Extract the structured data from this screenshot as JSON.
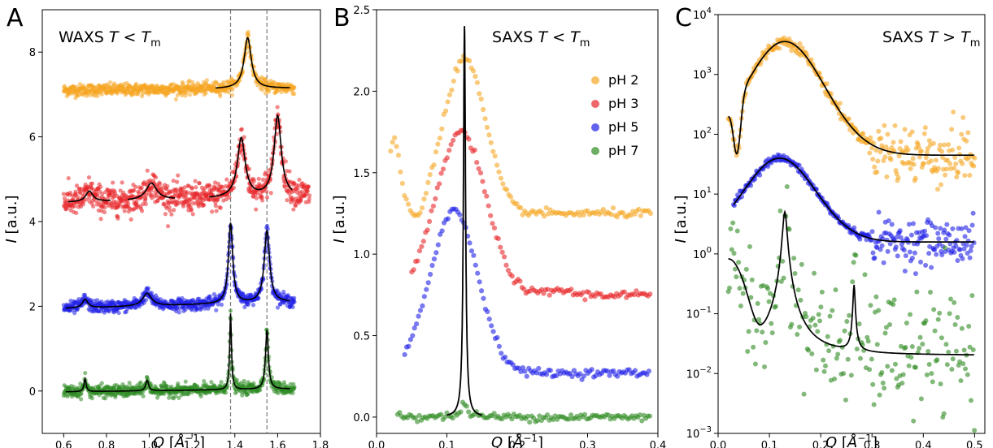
{
  "chart_data": [
    {
      "type": "scatter",
      "panel": "A",
      "title": "WAXS T < Tm",
      "xlabel": "Q [Å⁻¹]",
      "ylabel": "I [a.u.]",
      "xlim": [
        0.5,
        1.8
      ],
      "ylim": [
        -1,
        9
      ],
      "xticks": [
        "0.6",
        "0.8",
        "1.0",
        "1.2",
        "1.4",
        "1.6",
        "1.8"
      ],
      "yticks": [
        "0",
        "2",
        "4",
        "6",
        "8"
      ],
      "vlines": [
        1.38,
        1.55
      ],
      "series": [
        {
          "name": "pH 2",
          "color": "#f5a623",
          "offset": 7.0,
          "x_range": [
            0.6,
            1.68
          ],
          "baseline": [
            7.1,
            7.15
          ],
          "peaks": [
            {
              "x": 1.46,
              "height": 1.2,
              "width": 0.02
            }
          ]
        },
        {
          "name": "pH 3",
          "color": "#e8262a",
          "offset": 4.5,
          "x_range": [
            0.6,
            1.75
          ],
          "baseline": [
            4.45,
            4.6
          ],
          "peaks": [
            {
              "x": 0.72,
              "height": 0.25,
              "width": 0.02
            },
            {
              "x": 1.01,
              "height": 0.4,
              "width": 0.03
            },
            {
              "x": 1.43,
              "height": 1.4,
              "width": 0.022
            },
            {
              "x": 1.6,
              "height": 1.9,
              "width": 0.02
            }
          ]
        },
        {
          "name": "pH 5",
          "color": "#1f1fe8",
          "offset": 2.0,
          "x_range": [
            0.6,
            1.68
          ],
          "baseline": [
            1.95,
            2.1
          ],
          "peaks": [
            {
              "x": 0.7,
              "height": 0.2,
              "width": 0.015
            },
            {
              "x": 0.99,
              "height": 0.3,
              "width": 0.025
            },
            {
              "x": 1.38,
              "height": 1.9,
              "width": 0.012
            },
            {
              "x": 1.55,
              "height": 1.7,
              "width": 0.015
            }
          ]
        },
        {
          "name": "pH 7",
          "color": "#2e8b22",
          "offset": 0.0,
          "x_range": [
            0.6,
            1.68
          ],
          "baseline": [
            -0.02,
            0.05
          ],
          "peaks": [
            {
              "x": 0.7,
              "height": 0.3,
              "width": 0.006
            },
            {
              "x": 0.99,
              "height": 0.25,
              "width": 0.008
            },
            {
              "x": 1.38,
              "height": 1.8,
              "width": 0.005
            },
            {
              "x": 1.55,
              "height": 1.4,
              "width": 0.008
            }
          ]
        }
      ]
    },
    {
      "type": "scatter",
      "panel": "B",
      "title": "SAXS T < Tm",
      "xlabel": "Q [Å⁻¹]",
      "ylabel": "I [a.u.]",
      "xlim": [
        0.0,
        0.4
      ],
      "ylim": [
        -0.1,
        2.5
      ],
      "xticks": [
        "0.0",
        "0.1",
        "0.2",
        "0.3",
        "0.4"
      ],
      "yticks": [
        "0.0",
        "0.5",
        "1.0",
        "1.5",
        "2.0",
        "2.5"
      ],
      "legend_position": "top-right",
      "series": [
        {
          "name": "pH 2",
          "color": "#f5a623",
          "x_range": [
            0.02,
            0.39
          ],
          "points_desc": "broad bump ~2.2 at Q≈0.09–0.14, plateau 1.25"
        },
        {
          "name": "pH 3",
          "color": "#e8262a",
          "x_range": [
            0.05,
            0.39
          ],
          "points_desc": "peak ~1.75 at Q≈0.11–0.13, plateau 0.75"
        },
        {
          "name": "pH 5",
          "color": "#1f1fe8",
          "x_range": [
            0.04,
            0.39
          ],
          "points_desc": "peak ~1.28 at Q≈0.11, plateau 0.27"
        },
        {
          "name": "pH 7",
          "color": "#2e8b22",
          "x_range": [
            0.03,
            0.39
          ],
          "points_desc": "sharp peak 2.4 at Q=0.125, baseline 0.0"
        }
      ]
    },
    {
      "type": "scatter",
      "panel": "C",
      "title": "SAXS T > Tm",
      "xlabel": "Q [Å⁻¹]",
      "ylabel": "I [a.u.]",
      "yscale": "log",
      "xlim": [
        0.0,
        0.52
      ],
      "ylim": [
        0.001,
        10000
      ],
      "xticks": [
        "0.0",
        "0.1",
        "0.2",
        "0.3",
        "0.4",
        "0.5"
      ],
      "yticks": [
        "10⁻³",
        "10⁻²",
        "10⁻¹",
        "10⁰",
        "10¹",
        "10²",
        "10³",
        "10⁴"
      ],
      "series": [
        {
          "name": "pH 2",
          "color": "#f5a623",
          "x_range": [
            0.02,
            0.5
          ],
          "points_desc": "max ~3500 at Q≈0.1–0.15, plateau ~45"
        },
        {
          "name": "pH 5",
          "color": "#1f1fe8",
          "x_range": [
            0.03,
            0.5
          ],
          "points_desc": "max ~40 at Q≈0.1–0.15, plateau ~1.6"
        },
        {
          "name": "pH 7",
          "color": "#2e8b22",
          "x_range": [
            0.02,
            0.5
          ],
          "points_desc": "sharp peaks 5 at Q=0.13 and 0.3 at Q=0.265, baseline ~0.02"
        }
      ]
    }
  ]
}
